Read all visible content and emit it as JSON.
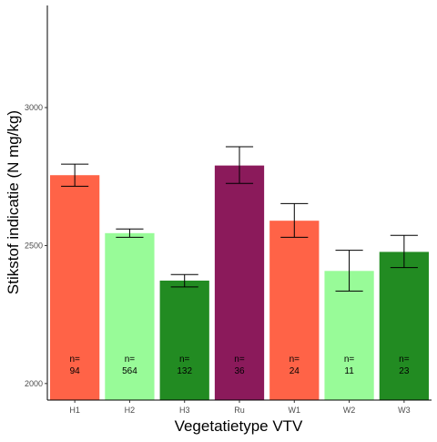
{
  "chart_data": {
    "type": "bar",
    "title": "",
    "xlabel": "Vegetatietype VTV",
    "ylabel": "Stikstof indicatie (N mg/kg)",
    "ylim": [
      1940,
      3370
    ],
    "y_ticks": [
      2000,
      2500,
      3000
    ],
    "grid": false,
    "legend": "none",
    "categories": [
      "H1",
      "H2",
      "H3",
      "Ru",
      "W1",
      "W2",
      "W3"
    ],
    "values": [
      2755,
      2545,
      2373,
      2790,
      2590,
      2408,
      2477
    ],
    "error_low": [
      2715,
      2530,
      2350,
      2725,
      2530,
      2335,
      2420
    ],
    "error_high": [
      2795,
      2560,
      2395,
      2858,
      2652,
      2483,
      2537
    ],
    "n_prefix": "n=",
    "n_values": [
      "94",
      "564",
      "132",
      "36",
      "24",
      "11",
      "23"
    ],
    "bar_colors": [
      "#FF6347",
      "#98FB98",
      "#228B22",
      "#8B1A5B",
      "#FF6347",
      "#98FB98",
      "#228B22"
    ],
    "error_bar_color": "#000000"
  }
}
